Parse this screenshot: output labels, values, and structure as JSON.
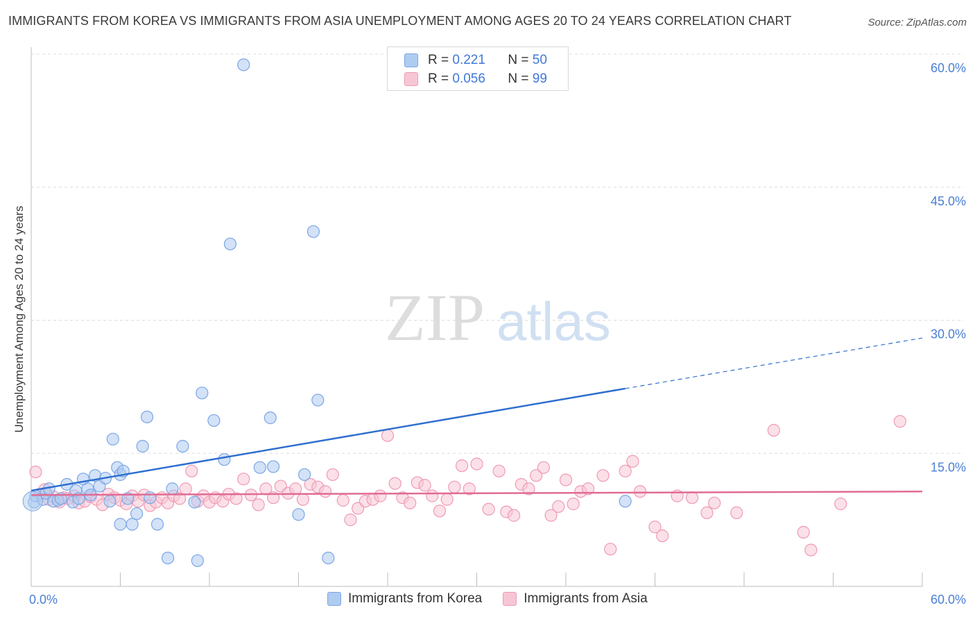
{
  "chart_data": {
    "type": "scatter",
    "title": "IMMIGRANTS FROM KOREA VS IMMIGRANTS FROM ASIA UNEMPLOYMENT AMONG AGES 20 TO 24 YEARS CORRELATION CHART",
    "source": "Source: ZipAtlas.com",
    "watermark": {
      "zip": "ZIP",
      "atlas": "atlas"
    },
    "xlabel": "",
    "ylabel": "Unemployment Among Ages 20 to 24 years",
    "xlim": [
      0,
      60
    ],
    "ylim": [
      0,
      60
    ],
    "x_tick_labels": {
      "min": "0.0%",
      "max": "60.0%"
    },
    "y_ticks": [
      {
        "value": 15,
        "label": "15.0%"
      },
      {
        "value": 30,
        "label": "30.0%"
      },
      {
        "value": 45,
        "label": "45.0%"
      },
      {
        "value": 60,
        "label": "60.0%"
      }
    ],
    "legend": [
      {
        "name": "Immigrants from Korea",
        "r_label": "R =",
        "r": "0.221",
        "n_label": "N =",
        "n": "50"
      },
      {
        "name": "Immigrants from Asia",
        "r_label": "R =",
        "r": "0.056",
        "n_label": "N =",
        "n": "99"
      }
    ],
    "series": [
      {
        "name": "Immigrants from Korea",
        "color": "#7aa6e6",
        "fill": "#aecbf0",
        "line_color": "#2f6fcf",
        "trend": {
          "x0": 0,
          "y0": 10.8,
          "x1": 40,
          "y1": 22.3,
          "dash_to_x": 60,
          "dash_to_y": 28.0
        },
        "points": [
          [
            0.2,
            9.5
          ],
          [
            0.3,
            10.2
          ],
          [
            0.8,
            9.8
          ],
          [
            1.0,
            10.5
          ],
          [
            1.2,
            11.0
          ],
          [
            1.5,
            9.6
          ],
          [
            1.8,
            9.7
          ],
          [
            2.0,
            9.9
          ],
          [
            2.4,
            11.5
          ],
          [
            2.8,
            9.5
          ],
          [
            3.0,
            10.8
          ],
          [
            3.2,
            9.9
          ],
          [
            3.5,
            12.1
          ],
          [
            3.8,
            11.0
          ],
          [
            4.0,
            10.3
          ],
          [
            4.3,
            12.5
          ],
          [
            4.6,
            11.3
          ],
          [
            5.0,
            12.2
          ],
          [
            5.3,
            9.6
          ],
          [
            5.8,
            13.4
          ],
          [
            6.0,
            12.6
          ],
          [
            6.2,
            13.0
          ],
          [
            6.5,
            9.9
          ],
          [
            6.8,
            7.0
          ],
          [
            7.1,
            8.2
          ],
          [
            7.5,
            15.8
          ],
          [
            7.8,
            19.1
          ],
          [
            8.0,
            10.0
          ],
          [
            8.5,
            7.0
          ],
          [
            9.2,
            3.2
          ],
          [
            9.5,
            11.0
          ],
          [
            10.2,
            15.8
          ],
          [
            11.2,
            2.9
          ],
          [
            11.5,
            21.8
          ],
          [
            12.3,
            18.7
          ],
          [
            13.0,
            14.3
          ],
          [
            13.4,
            38.6
          ],
          [
            14.3,
            58.8
          ],
          [
            15.4,
            13.4
          ],
          [
            16.1,
            19.0
          ],
          [
            18.0,
            8.1
          ],
          [
            18.4,
            12.6
          ],
          [
            19.0,
            40.0
          ],
          [
            19.3,
            21.0
          ],
          [
            20.0,
            3.2
          ],
          [
            11.0,
            9.5
          ],
          [
            6.0,
            7.0
          ],
          [
            16.3,
            13.5
          ],
          [
            5.5,
            16.6
          ],
          [
            40.0,
            9.6
          ]
        ]
      },
      {
        "name": "Immigrants from Asia",
        "color": "#ef9ab5",
        "fill": "#f7c6d5",
        "line_color": "#e06c94",
        "trend": {
          "x0": 0,
          "y0": 10.3,
          "x1": 60,
          "y1": 10.7
        },
        "points": [
          [
            0.3,
            12.9
          ],
          [
            0.6,
            10.4
          ],
          [
            0.9,
            10.9
          ],
          [
            1.2,
            9.8
          ],
          [
            1.5,
            10.1
          ],
          [
            1.9,
            9.5
          ],
          [
            2.2,
            10.0
          ],
          [
            2.5,
            9.9
          ],
          [
            2.9,
            10.2
          ],
          [
            3.2,
            9.4
          ],
          [
            3.6,
            9.6
          ],
          [
            4.0,
            10.1
          ],
          [
            4.4,
            9.8
          ],
          [
            4.8,
            9.2
          ],
          [
            5.2,
            10.4
          ],
          [
            5.6,
            10.0
          ],
          [
            6.0,
            9.7
          ],
          [
            6.4,
            9.3
          ],
          [
            6.8,
            10.2
          ],
          [
            7.2,
            9.6
          ],
          [
            7.6,
            10.3
          ],
          [
            8.0,
            9.1
          ],
          [
            8.4,
            9.5
          ],
          [
            8.8,
            10.0
          ],
          [
            9.2,
            9.4
          ],
          [
            9.6,
            10.2
          ],
          [
            10.0,
            9.9
          ],
          [
            10.4,
            11.0
          ],
          [
            10.8,
            13.0
          ],
          [
            11.2,
            9.6
          ],
          [
            11.6,
            10.2
          ],
          [
            12.0,
            9.5
          ],
          [
            12.4,
            10.0
          ],
          [
            12.9,
            9.6
          ],
          [
            13.3,
            10.4
          ],
          [
            13.8,
            9.9
          ],
          [
            14.3,
            12.1
          ],
          [
            14.8,
            10.3
          ],
          [
            15.3,
            9.2
          ],
          [
            15.8,
            11.0
          ],
          [
            16.3,
            10.0
          ],
          [
            16.8,
            11.3
          ],
          [
            17.3,
            10.5
          ],
          [
            17.8,
            11.0
          ],
          [
            18.3,
            9.8
          ],
          [
            18.8,
            11.5
          ],
          [
            19.3,
            11.2
          ],
          [
            19.8,
            10.7
          ],
          [
            20.3,
            12.6
          ],
          [
            21.0,
            9.7
          ],
          [
            21.5,
            7.5
          ],
          [
            22.0,
            8.8
          ],
          [
            22.5,
            9.6
          ],
          [
            23.0,
            9.8
          ],
          [
            23.5,
            10.2
          ],
          [
            24.0,
            17.0
          ],
          [
            24.5,
            11.6
          ],
          [
            25.0,
            10.0
          ],
          [
            25.5,
            9.4
          ],
          [
            26.0,
            11.7
          ],
          [
            26.5,
            11.4
          ],
          [
            27.0,
            10.2
          ],
          [
            27.5,
            8.5
          ],
          [
            28.0,
            9.8
          ],
          [
            28.5,
            11.2
          ],
          [
            29.0,
            13.6
          ],
          [
            29.5,
            11.0
          ],
          [
            30.0,
            13.8
          ],
          [
            30.8,
            8.7
          ],
          [
            31.5,
            13.0
          ],
          [
            32.0,
            8.4
          ],
          [
            32.5,
            8.0
          ],
          [
            33.0,
            11.5
          ],
          [
            33.5,
            11.0
          ],
          [
            34.0,
            12.5
          ],
          [
            34.5,
            13.4
          ],
          [
            35.0,
            8.0
          ],
          [
            35.5,
            9.0
          ],
          [
            36.0,
            12.0
          ],
          [
            36.5,
            9.3
          ],
          [
            37.0,
            10.7
          ],
          [
            37.5,
            11.0
          ],
          [
            38.5,
            12.5
          ],
          [
            39.0,
            4.2
          ],
          [
            40.0,
            13.0
          ],
          [
            40.5,
            14.1
          ],
          [
            41.0,
            10.7
          ],
          [
            42.0,
            6.7
          ],
          [
            42.5,
            5.7
          ],
          [
            43.5,
            10.2
          ],
          [
            44.5,
            10.0
          ],
          [
            45.5,
            8.3
          ],
          [
            46.0,
            9.4
          ],
          [
            47.5,
            8.3
          ],
          [
            50.0,
            17.6
          ],
          [
            52.0,
            6.1
          ],
          [
            52.5,
            4.1
          ],
          [
            54.5,
            9.3
          ],
          [
            58.5,
            18.6
          ]
        ]
      }
    ]
  }
}
